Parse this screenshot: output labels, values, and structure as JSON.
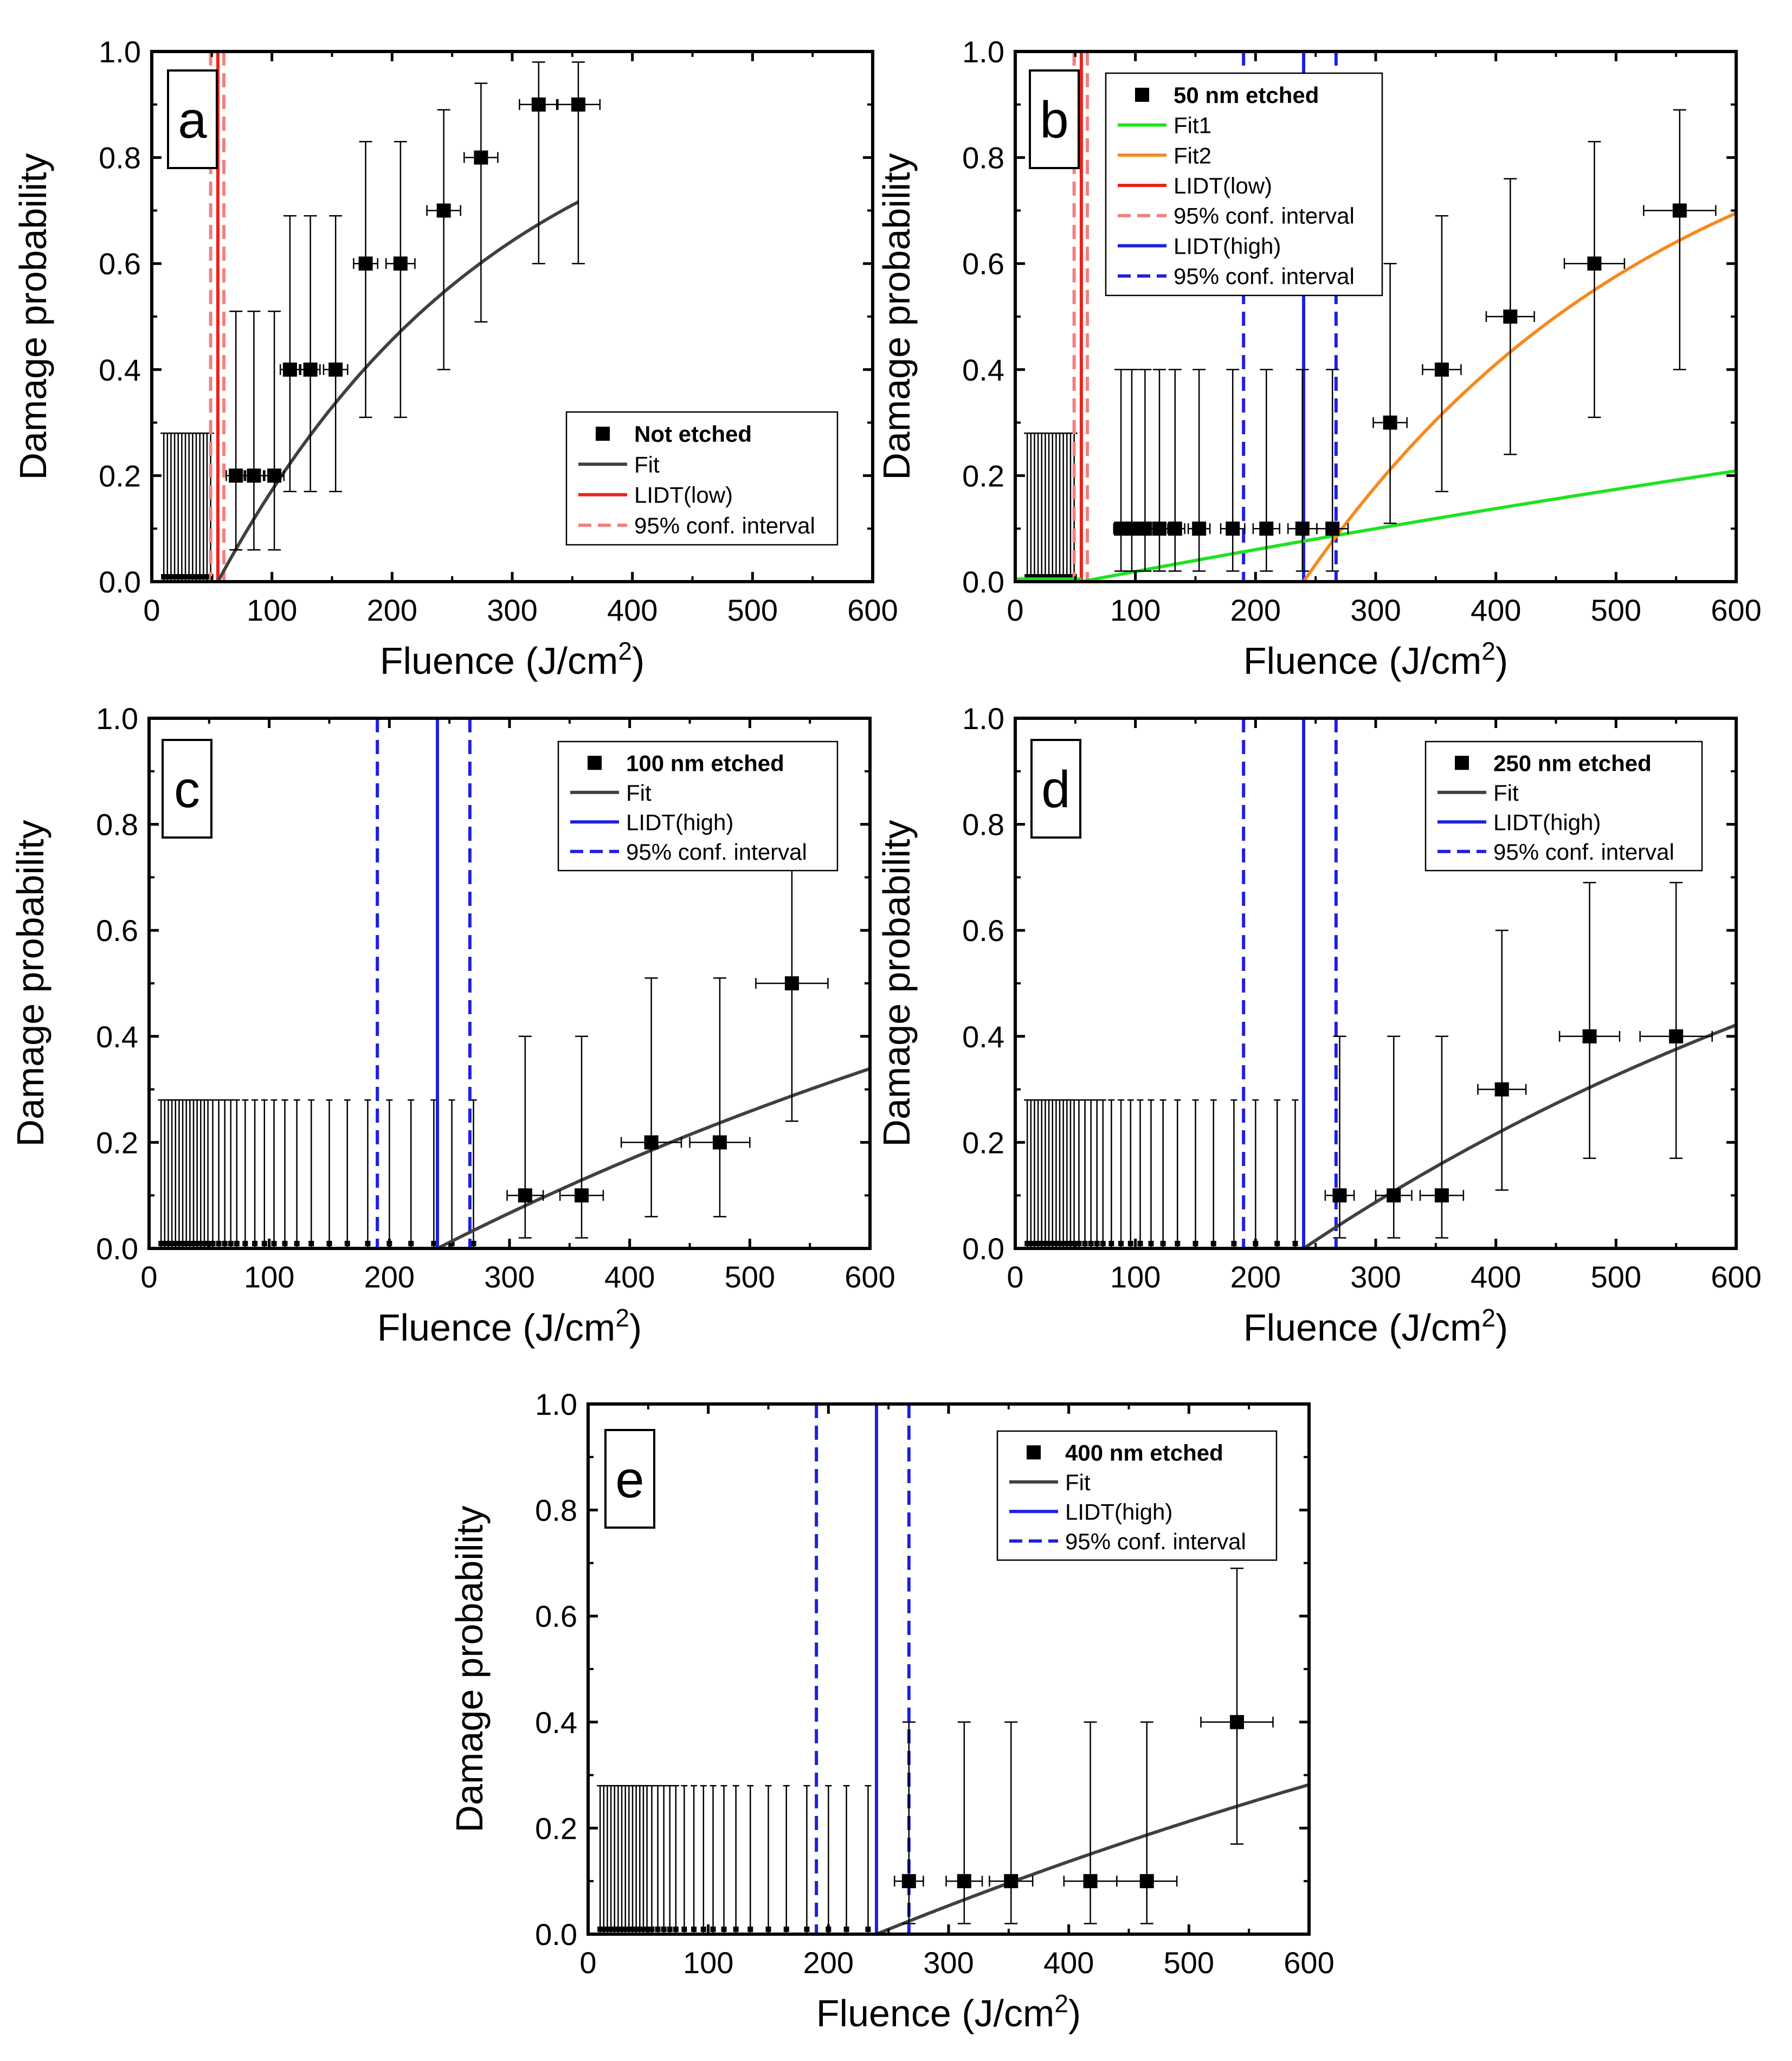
{
  "figure": {
    "x_ticks": [
      "0",
      "100",
      "200",
      "300",
      "400",
      "500",
      "600"
    ],
    "y_ticks": [
      "0.0",
      "0.2",
      "0.4",
      "0.6",
      "0.8",
      "1.0"
    ],
    "xlabel_main": "Fluence (J/cm",
    "xlabel_sup": "2",
    "xlabel_end": ")",
    "ylabel": "Damage probability"
  },
  "chart_data": [
    {
      "panel": "a",
      "type": "scatter",
      "xlim": [
        0,
        600
      ],
      "ylim": [
        0,
        1
      ],
      "legend": [
        "Not etched",
        "Fit",
        "LIDT(low)",
        "95% conf. interval"
      ],
      "zero_bars_x": [
        10,
        13,
        16,
        19,
        22,
        25,
        28,
        31,
        34,
        37,
        40,
        43,
        46,
        49
      ],
      "zero_bar_height": 0.28,
      "points": [
        {
          "x": 70,
          "y": 0.2,
          "xerr": 8,
          "lo": 0.06,
          "hi": 0.51
        },
        {
          "x": 85,
          "y": 0.2,
          "xerr": 8,
          "lo": 0.06,
          "hi": 0.51
        },
        {
          "x": 102,
          "y": 0.2,
          "xerr": 8,
          "lo": 0.06,
          "hi": 0.51
        },
        {
          "x": 115,
          "y": 0.4,
          "xerr": 8,
          "lo": 0.17,
          "hi": 0.69
        },
        {
          "x": 132,
          "y": 0.4,
          "xerr": 8,
          "lo": 0.17,
          "hi": 0.69
        },
        {
          "x": 153,
          "y": 0.4,
          "xerr": 10,
          "lo": 0.17,
          "hi": 0.69
        },
        {
          "x": 178,
          "y": 0.6,
          "xerr": 10,
          "lo": 0.31,
          "hi": 0.83
        },
        {
          "x": 207,
          "y": 0.6,
          "xerr": 12,
          "lo": 0.31,
          "hi": 0.83
        },
        {
          "x": 243,
          "y": 0.7,
          "xerr": 14,
          "lo": 0.4,
          "hi": 0.89
        },
        {
          "x": 274,
          "y": 0.8,
          "xerr": 14,
          "lo": 0.49,
          "hi": 0.94
        },
        {
          "x": 322,
          "y": 0.9,
          "xerr": 16,
          "lo": 0.6,
          "hi": 0.98
        },
        {
          "x": 355,
          "y": 0.9,
          "xerr": 18,
          "lo": 0.6,
          "hi": 0.98
        }
      ],
      "fits": [
        {
          "name": "Fit",
          "color": "#404040",
          "x0": 55,
          "k": 0.0042,
          "xend": 355
        }
      ],
      "vlines": [
        {
          "name": "LIDT(low)",
          "x": 55,
          "color": "#e8231b",
          "dash": false
        },
        {
          "name": "95% conf. interval",
          "x": 49,
          "color": "#f08080",
          "dash": true
        },
        {
          "name": "95% conf. interval",
          "x": 60,
          "color": "#f08080",
          "dash": true
        }
      ]
    },
    {
      "panel": "b",
      "type": "scatter",
      "xlim": [
        0,
        600
      ],
      "ylim": [
        0,
        1
      ],
      "legend": [
        "50 nm etched",
        "Fit1",
        "Fit2",
        "LIDT(low)",
        "95% conf. interval",
        "LIDT(high)",
        "95% conf. interval"
      ],
      "zero_bars_x": [
        10,
        13,
        16,
        19,
        22,
        25,
        28,
        31,
        34,
        37,
        40,
        43,
        46,
        49
      ],
      "zero_bar_height": 0.28,
      "points": [
        {
          "x": 88,
          "y": 0.1,
          "xerr": 6,
          "lo": 0.02,
          "hi": 0.4
        },
        {
          "x": 97,
          "y": 0.1,
          "xerr": 6,
          "lo": 0.02,
          "hi": 0.4
        },
        {
          "x": 108,
          "y": 0.1,
          "xerr": 7,
          "lo": 0.02,
          "hi": 0.4
        },
        {
          "x": 120,
          "y": 0.1,
          "xerr": 7,
          "lo": 0.02,
          "hi": 0.4
        },
        {
          "x": 133,
          "y": 0.1,
          "xerr": 8,
          "lo": 0.02,
          "hi": 0.4
        },
        {
          "x": 153,
          "y": 0.1,
          "xerr": 9,
          "lo": 0.02,
          "hi": 0.4
        },
        {
          "x": 181,
          "y": 0.1,
          "xerr": 10,
          "lo": 0.02,
          "hi": 0.4
        },
        {
          "x": 209,
          "y": 0.1,
          "xerr": 11,
          "lo": 0.02,
          "hi": 0.4
        },
        {
          "x": 239,
          "y": 0.1,
          "xerr": 12,
          "lo": 0.02,
          "hi": 0.4
        },
        {
          "x": 264,
          "y": 0.1,
          "xerr": 13,
          "lo": 0.02,
          "hi": 0.4
        },
        {
          "x": 312,
          "y": 0.3,
          "xerr": 14,
          "lo": 0.11,
          "hi": 0.6
        },
        {
          "x": 355,
          "y": 0.4,
          "xerr": 16,
          "lo": 0.17,
          "hi": 0.69
        },
        {
          "x": 412,
          "y": 0.5,
          "xerr": 20,
          "lo": 0.24,
          "hi": 0.76
        },
        {
          "x": 482,
          "y": 0.6,
          "xerr": 25,
          "lo": 0.31,
          "hi": 0.83
        },
        {
          "x": 553,
          "y": 0.7,
          "xerr": 30,
          "lo": 0.4,
          "hi": 0.89
        }
      ],
      "fits": [
        {
          "name": "Fit1",
          "color": "#1fe21f",
          "x0": 55,
          "k": 0.00043,
          "xend": 600
        },
        {
          "name": "Fit2",
          "color": "#f58a1f",
          "x0": 240,
          "k": 0.0033,
          "xend": 600
        }
      ],
      "vlines": [
        {
          "name": "LIDT(low)",
          "x": 55,
          "color": "#e8231b",
          "dash": false
        },
        {
          "name": "95% conf. interval",
          "x": 49,
          "color": "#f08080",
          "dash": true
        },
        {
          "name": "95% conf. interval",
          "x": 60,
          "color": "#f08080",
          "dash": true
        },
        {
          "name": "LIDT(high)",
          "x": 240,
          "color": "#1f1fe0",
          "dash": false
        },
        {
          "name": "95% conf. interval",
          "x": 190,
          "color": "#1f1fe0",
          "dash": true
        },
        {
          "name": "95% conf. interval",
          "x": 267,
          "color": "#1f1fe0",
          "dash": true
        }
      ]
    },
    {
      "panel": "c",
      "type": "scatter",
      "xlim": [
        0,
        600
      ],
      "ylim": [
        0,
        1
      ],
      "legend": [
        "100 nm etched",
        "Fit",
        "LIDT(high)",
        "95% conf. interval"
      ],
      "zero_bars_x": [
        10,
        13,
        16,
        19,
        22,
        25,
        28,
        31,
        34,
        37,
        40,
        43,
        46,
        49,
        53,
        58,
        63,
        68,
        73,
        80,
        88,
        96,
        104,
        113,
        123,
        135,
        150,
        165,
        182,
        200,
        218,
        237,
        252,
        270
      ],
      "zero_bar_height": 0.28,
      "points": [
        {
          "x": 313,
          "y": 0.1,
          "xerr": 15,
          "lo": 0.02,
          "hi": 0.4
        },
        {
          "x": 360,
          "y": 0.1,
          "xerr": 18,
          "lo": 0.02,
          "hi": 0.4
        },
        {
          "x": 418,
          "y": 0.2,
          "xerr": 25,
          "lo": 0.06,
          "hi": 0.51
        },
        {
          "x": 475,
          "y": 0.2,
          "xerr": 25,
          "lo": 0.06,
          "hi": 0.51
        },
        {
          "x": 535,
          "y": 0.5,
          "xerr": 30,
          "lo": 0.24,
          "hi": 0.76
        }
      ],
      "fits": [
        {
          "name": "Fit",
          "color": "#404040",
          "x0": 240,
          "k": 0.00115,
          "xend": 600
        }
      ],
      "vlines": [
        {
          "name": "LIDT(high)",
          "x": 240,
          "color": "#1f1fe0",
          "dash": false
        },
        {
          "name": "95% conf. interval",
          "x": 190,
          "color": "#1f1fe0",
          "dash": true
        },
        {
          "name": "95% conf. interval",
          "x": 267,
          "color": "#1f1fe0",
          "dash": true
        }
      ]
    },
    {
      "panel": "d",
      "type": "scatter",
      "xlim": [
        0,
        600
      ],
      "ylim": [
        0,
        1
      ],
      "legend": [
        "250 nm etched",
        "Fit",
        "LIDT(high)",
        "95% conf. interval"
      ],
      "zero_bars_x": [
        10,
        13,
        16,
        19,
        22,
        25,
        28,
        31,
        34,
        37,
        40,
        43,
        46,
        49,
        53,
        58,
        63,
        68,
        73,
        80,
        88,
        96,
        104,
        113,
        123,
        135,
        150,
        165,
        182,
        200,
        218,
        233
      ],
      "zero_bar_height": 0.28,
      "points": [
        {
          "x": 270,
          "y": 0.1,
          "xerr": 12,
          "lo": 0.02,
          "hi": 0.4
        },
        {
          "x": 315,
          "y": 0.1,
          "xerr": 15,
          "lo": 0.02,
          "hi": 0.4
        },
        {
          "x": 355,
          "y": 0.1,
          "xerr": 18,
          "lo": 0.02,
          "hi": 0.4
        },
        {
          "x": 405,
          "y": 0.3,
          "xerr": 20,
          "lo": 0.11,
          "hi": 0.6
        },
        {
          "x": 478,
          "y": 0.4,
          "xerr": 25,
          "lo": 0.17,
          "hi": 0.69
        },
        {
          "x": 550,
          "y": 0.4,
          "xerr": 30,
          "lo": 0.17,
          "hi": 0.69
        }
      ],
      "fits": [
        {
          "name": "Fit",
          "color": "#404040",
          "x0": 240,
          "k": 0.00152,
          "xend": 600
        }
      ],
      "vlines": [
        {
          "name": "LIDT(high)",
          "x": 240,
          "color": "#1f1fe0",
          "dash": false
        },
        {
          "name": "95% conf. interval",
          "x": 190,
          "color": "#1f1fe0",
          "dash": true
        },
        {
          "name": "95% conf. interval",
          "x": 267,
          "color": "#1f1fe0",
          "dash": true
        }
      ]
    },
    {
      "panel": "e",
      "type": "scatter",
      "xlim": [
        0,
        600
      ],
      "ylim": [
        0,
        1
      ],
      "legend": [
        "400 nm etched",
        "Fit",
        "LIDT(high)",
        "95% conf. interval"
      ],
      "zero_bars_x": [
        10,
        13,
        16,
        19,
        22,
        25,
        28,
        31,
        34,
        37,
        40,
        43,
        46,
        49,
        53,
        58,
        63,
        68,
        73,
        80,
        88,
        96,
        104,
        113,
        123,
        135,
        150,
        165,
        182,
        200,
        215,
        233
      ],
      "zero_bar_height": 0.28,
      "points": [
        {
          "x": 267,
          "y": 0.1,
          "xerr": 12,
          "lo": 0.02,
          "hi": 0.4
        },
        {
          "x": 313,
          "y": 0.1,
          "xerr": 15,
          "lo": 0.02,
          "hi": 0.4
        },
        {
          "x": 352,
          "y": 0.1,
          "xerr": 18,
          "lo": 0.02,
          "hi": 0.4
        },
        {
          "x": 418,
          "y": 0.1,
          "xerr": 22,
          "lo": 0.02,
          "hi": 0.4
        },
        {
          "x": 465,
          "y": 0.1,
          "xerr": 25,
          "lo": 0.02,
          "hi": 0.4
        },
        {
          "x": 540,
          "y": 0.4,
          "xerr": 30,
          "lo": 0.17,
          "hi": 0.69
        }
      ],
      "fits": [
        {
          "name": "Fit",
          "color": "#404040",
          "x0": 240,
          "k": 0.00092,
          "xend": 600
        }
      ],
      "vlines": [
        {
          "name": "LIDT(high)",
          "x": 240,
          "color": "#1f1fe0",
          "dash": false
        },
        {
          "name": "95% conf. interval",
          "x": 190,
          "color": "#1f1fe0",
          "dash": true
        },
        {
          "name": "95% conf. interval",
          "x": 267,
          "color": "#1f1fe0",
          "dash": true
        }
      ]
    }
  ]
}
